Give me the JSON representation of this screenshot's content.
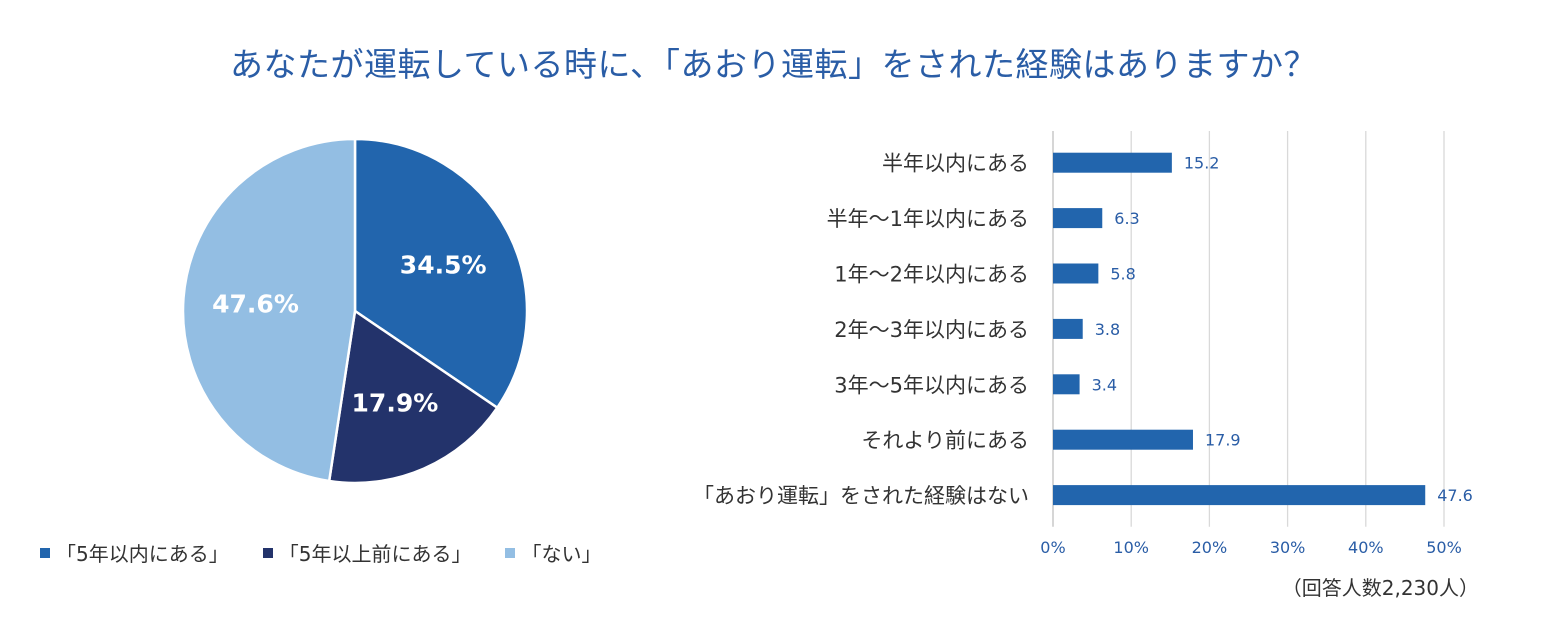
{
  "title": "あなたが運転している時に、「あおり運転」をされた経験はありますか？",
  "footnote": "（回答人数2,230人）",
  "colors": {
    "dark_blue": "#2265ad",
    "navy": "#23336b",
    "light_blue": "#93bee3",
    "axis_text": "#2a5da6",
    "gridline": "#d9d9d9"
  },
  "chart_data": [
    {
      "type": "pie",
      "slices": [
        {
          "name": "「5年以内にある」",
          "value": 34.5,
          "label": "34.5%",
          "color": "#2265ad"
        },
        {
          "name": "「5年以上前にある」",
          "value": 17.9,
          "label": "17.9%",
          "color": "#23336b"
        },
        {
          "name": "「ない」",
          "value": 47.6,
          "label": "47.6%",
          "color": "#93bee3"
        }
      ],
      "legend_placement": "bottom"
    },
    {
      "type": "bar",
      "orientation": "horizontal",
      "categories": [
        "半年以内にある",
        "半年～1年以内にある",
        "1年～2年以内にある",
        "2年～3年以内にある",
        "3年～5年以内にある",
        "それより前にある",
        "「あおり運転」をされた経験はない"
      ],
      "values": [
        15.2,
        6.3,
        5.8,
        3.8,
        3.4,
        17.9,
        47.6
      ],
      "value_labels": [
        "15.2",
        "6.3",
        "5.8",
        "3.8",
        "3.4",
        "17.9",
        "47.6"
      ],
      "xlim": [
        0,
        50
      ],
      "xticks": [
        "0%",
        "10%",
        "20%",
        "30%",
        "40%",
        "50%"
      ],
      "grid": true,
      "color": "#2265ad"
    }
  ]
}
